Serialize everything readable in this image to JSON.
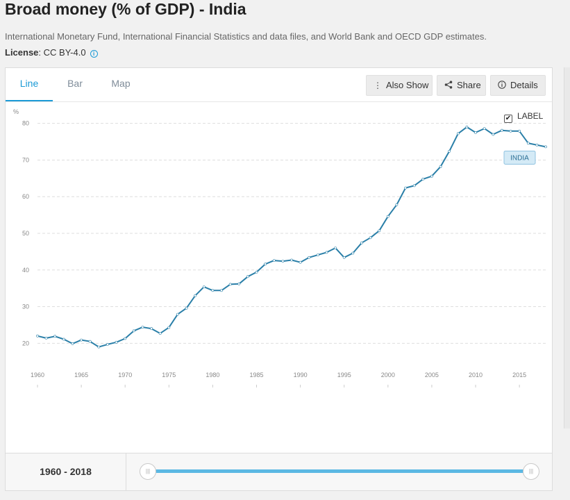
{
  "header": {
    "title": "Broad money (% of GDP) - India",
    "source": "International Monetary Fund, International Financial Statistics and data files, and World Bank and OECD GDP estimates.",
    "license_label": "License",
    "license_value": ": CC BY-4.0"
  },
  "tabs": [
    {
      "label": "Line",
      "active": true
    },
    {
      "label": "Bar",
      "active": false
    },
    {
      "label": "Map",
      "active": false
    }
  ],
  "toolbar": {
    "also_show": "Also Show",
    "share": "Share",
    "details": "Details"
  },
  "label_toggle": {
    "label": "LABEL",
    "checked": true
  },
  "range": {
    "label": "1960 - 2018"
  },
  "colors": {
    "line": "#2a7fa8",
    "accent": "#1a9ad6",
    "label_bg": "#d4eaf6"
  },
  "chart_data": {
    "type": "line",
    "ylabel": "%",
    "ylim": [
      14,
      86
    ],
    "yticks": [
      20,
      30,
      40,
      50,
      60,
      70,
      80
    ],
    "xlim": [
      1960,
      2018
    ],
    "xticks": [
      1960,
      1965,
      1970,
      1975,
      1980,
      1985,
      1990,
      1995,
      2000,
      2005,
      2010,
      2015
    ],
    "grid": true,
    "series_label": "INDIA",
    "series": [
      {
        "name": "INDIA",
        "x": [
          1960,
          1961,
          1962,
          1963,
          1964,
          1965,
          1966,
          1967,
          1968,
          1969,
          1970,
          1971,
          1972,
          1973,
          1974,
          1975,
          1976,
          1977,
          1978,
          1979,
          1980,
          1981,
          1982,
          1983,
          1984,
          1985,
          1986,
          1987,
          1988,
          1989,
          1990,
          1991,
          1992,
          1993,
          1994,
          1995,
          1996,
          1997,
          1998,
          1999,
          2000,
          2001,
          2002,
          2003,
          2004,
          2005,
          2006,
          2007,
          2008,
          2009,
          2010,
          2011,
          2012,
          2013,
          2014,
          2015,
          2016,
          2017,
          2018
        ],
        "values": [
          22.0,
          21.4,
          21.9,
          21.1,
          19.9,
          20.9,
          20.5,
          19.0,
          19.7,
          20.3,
          21.3,
          23.4,
          24.4,
          24.0,
          22.7,
          24.3,
          27.9,
          29.6,
          33.0,
          35.4,
          34.4,
          34.4,
          36.1,
          36.2,
          38.2,
          39.4,
          41.6,
          42.6,
          42.4,
          42.7,
          42.1,
          43.4,
          44.1,
          44.8,
          46.0,
          43.4,
          44.6,
          47.4,
          48.8,
          50.7,
          54.6,
          57.8,
          62.4,
          63.0,
          64.8,
          65.6,
          68.2,
          72.4,
          77.2,
          79.0,
          77.5,
          78.6,
          77.0,
          78.1,
          77.9,
          77.9,
          74.6,
          74.1,
          73.6
        ]
      }
    ]
  }
}
